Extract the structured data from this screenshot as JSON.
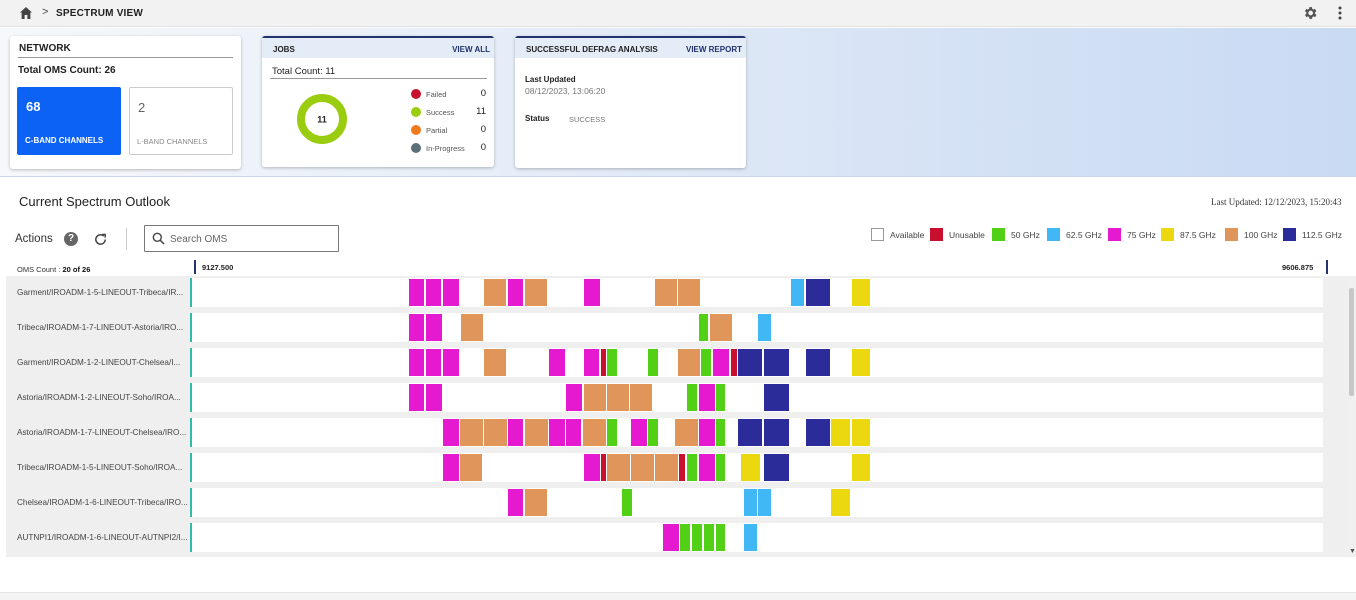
{
  "topbar": {
    "breadcrumb_sep": ">",
    "title": "SPECTRUM VIEW",
    "icons": [
      "home-icon",
      "gear-icon",
      "kebab-icon"
    ]
  },
  "network": {
    "title": "NETWORK",
    "total_label": "Total OMS Count: 26",
    "cband": {
      "value": "68",
      "label": "C-BAND CHANNELS",
      "color": "#0b62f5"
    },
    "lband": {
      "value": "2",
      "label": "L-BAND CHANNELS"
    }
  },
  "jobs": {
    "title": "JOBS",
    "link": "VIEW ALL",
    "total_label": "Total Count: 11",
    "donut_value": "11",
    "items": [
      {
        "label": "Failed",
        "value": "0",
        "color": "#c8102e"
      },
      {
        "label": "Success",
        "value": "11",
        "color": "#9acd0f"
      },
      {
        "label": "Partial",
        "value": "0",
        "color": "#f07b1f"
      },
      {
        "label": "In-Progress",
        "value": "0",
        "color": "#5b7078"
      }
    ]
  },
  "defrag": {
    "title": "SUCCESSFUL DEFRAG ANALYSIS",
    "link": "VIEW REPORT",
    "updated_label": "Last Updated",
    "updated_value": "08/12/2023, 13:06:20",
    "status_label": "Status",
    "status_value": "SUCCESS"
  },
  "spectrum": {
    "title": "Current Spectrum Outlook",
    "last_updated": "Last Updated: 12/12/2023, 15:20:43",
    "actions_label": "Actions",
    "help_glyph": "?",
    "search_placeholder": "Search OMS",
    "oms_count_prefix": "OMS Count :",
    "oms_count_value": "20 of 26",
    "freq_start": "9127.500",
    "freq_end": "9606.875",
    "legend": [
      {
        "label": "Available",
        "color": "#ffffff"
      },
      {
        "label": "Unusable",
        "color": "#c8102e"
      },
      {
        "label": "50 GHz",
        "color": "#52d016"
      },
      {
        "label": "62.5 GHz",
        "color": "#3fb8f5"
      },
      {
        "label": "75 GHz",
        "color": "#e51ad0"
      },
      {
        "label": "87.5 GHz",
        "color": "#ecd80f"
      },
      {
        "label": "100 GHz",
        "color": "#e0965a"
      },
      {
        "label": "112.5 GHz",
        "color": "#2b2b99"
      }
    ],
    "rows": [
      {
        "label": "Garment/IROADM-1-5-LINEOUT-Tribeca/IR..."
      },
      {
        "label": "Tribeca/IROADM-1-7-LINEOUT-Astoria/IRO..."
      },
      {
        "label": "Garment/IROADM-1-2-LINEOUT-Chelsea/I..."
      },
      {
        "label": "Astoria/IROADM-1-2-LINEOUT-Soho/IROA..."
      },
      {
        "label": "Astoria/IROADM-1-7-LINEOUT-Chelsea/IRO..."
      },
      {
        "label": "Tribeca/IROADM-1-5-LINEOUT-Soho/IROA..."
      },
      {
        "label": "Chelsea/IROADM-1-6-LINEOUT-Tribeca/IRO..."
      },
      {
        "label": "AUTNPI1/IROADM-1-6-LINEOUT-AUTNPI2/I..."
      }
    ]
  }
}
